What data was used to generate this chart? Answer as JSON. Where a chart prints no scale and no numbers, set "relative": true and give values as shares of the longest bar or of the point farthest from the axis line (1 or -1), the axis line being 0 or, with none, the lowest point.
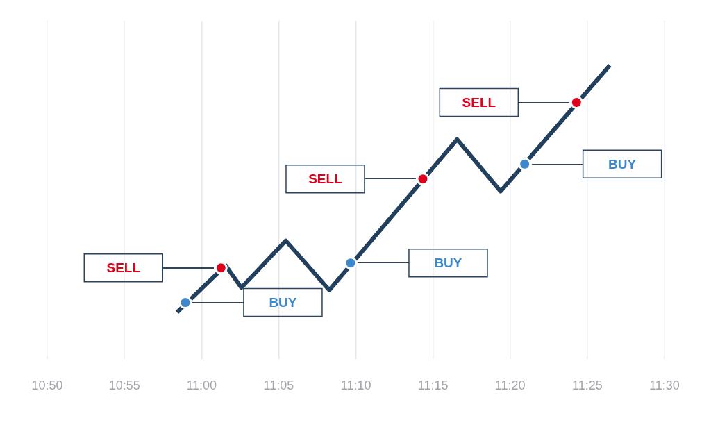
{
  "chart_data": {
    "type": "line",
    "relative": true,
    "grid": "x",
    "line_style": "solid",
    "xlim": [
      10.8333,
      11.5
    ],
    "xticks": [
      {
        "value": 10.8333,
        "label": "10:50"
      },
      {
        "value": 10.9167,
        "label": "10:55"
      },
      {
        "value": 11,
        "label": "11:00"
      },
      {
        "value": 11.0833,
        "label": "11:05"
      },
      {
        "value": 11.1667,
        "label": "11:10"
      },
      {
        "value": 11.25,
        "label": "11:15"
      },
      {
        "value": 11.3333,
        "label": "11:20"
      },
      {
        "value": 11.4167,
        "label": "11:25"
      },
      {
        "value": 11.5,
        "label": "11:30"
      }
    ],
    "series": [
      {
        "color": "#233f5e",
        "marker": "none",
        "x": [
          10.9735,
          11.026,
          11.043,
          11.091,
          11.138,
          11.276,
          11.323,
          11.441
        ],
        "values": [
          0,
          0.19,
          0.1,
          0.29,
          0.09,
          0.7,
          0.49,
          1
        ]
      },
      {
        "type": "scatter",
        "name": "BUY",
        "marker": "circle",
        "color": "#3d88cc",
        "x": [
          10.9825,
          11.161,
          11.349
        ],
        "values": [
          0.04,
          0.2,
          0.6
        ]
      },
      {
        "type": "scatter",
        "name": "SELL",
        "marker": "circle",
        "color": "#e0001b",
        "x": [
          11.021,
          11.239,
          11.405
        ],
        "values": [
          0.18,
          0.54,
          0.85
        ]
      }
    ]
  }
}
